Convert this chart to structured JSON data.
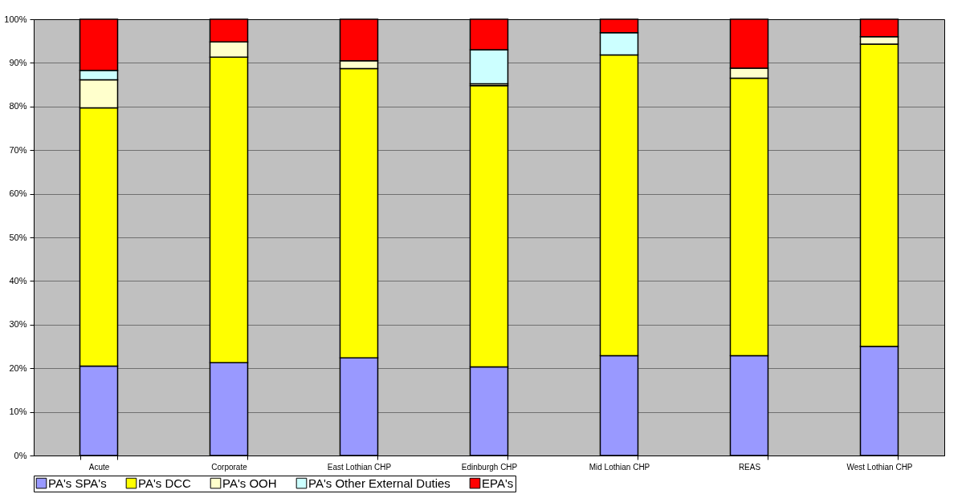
{
  "chart_data": {
    "type": "bar",
    "stacked": true,
    "categories": [
      "Acute",
      "Corporate",
      "East Lothian CHP",
      "Edinburgh CHP",
      "Mid Lothian CHP",
      "REAS",
      "West Lothian CHP"
    ],
    "series": [
      {
        "name": "PA's SPA's",
        "color": "#9999ff",
        "values": [
          20.5,
          21.3,
          22.4,
          20.3,
          22.9,
          22.9,
          25.0
        ]
      },
      {
        "name": "PA's DCC",
        "color": "#ffff00",
        "values": [
          59.2,
          70.0,
          66.3,
          64.5,
          68.9,
          63.6,
          69.3
        ]
      },
      {
        "name": "PA's OOH",
        "color": "#ffffcc",
        "values": [
          6.4,
          3.5,
          1.8,
          0.4,
          0,
          2.3,
          1.7
        ]
      },
      {
        "name": "PA's Other External Duties",
        "color": "#ccffff",
        "values": [
          2.2,
          0,
          0,
          7.8,
          5.1,
          0,
          0
        ]
      },
      {
        "name": "EPA's",
        "color": "#ff0000",
        "values": [
          11.7,
          5.2,
          9.5,
          7.0,
          3.1,
          11.2,
          4.0
        ]
      }
    ],
    "ylim": [
      0,
      100
    ],
    "yticks": [
      {
        "value": 0,
        "label": "0%"
      },
      {
        "value": 10,
        "label": "10%"
      },
      {
        "value": 20,
        "label": "20%"
      },
      {
        "value": 30,
        "label": "30%"
      },
      {
        "value": 40,
        "label": "40%"
      },
      {
        "value": 50,
        "label": "50%"
      },
      {
        "value": 60,
        "label": "60%"
      },
      {
        "value": 70,
        "label": "70%"
      },
      {
        "value": 80,
        "label": "80%"
      },
      {
        "value": 90,
        "label": "90%"
      },
      {
        "value": 100,
        "label": "100%"
      }
    ],
    "grid": "y",
    "legend": "bottom"
  }
}
